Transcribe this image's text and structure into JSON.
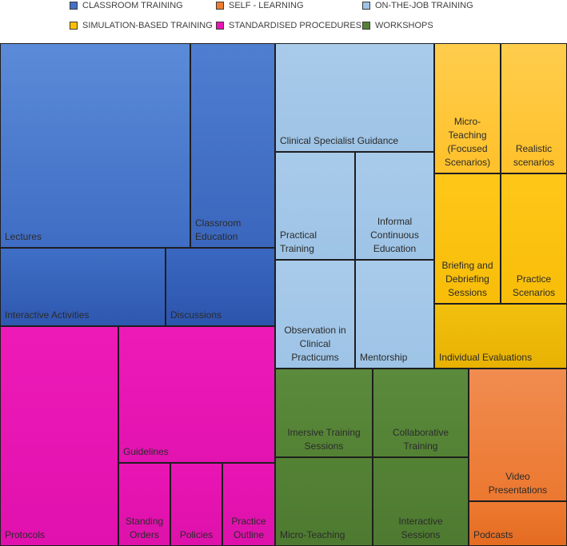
{
  "chart_data": {
    "type": "treemap",
    "title": "",
    "legend_position": "top",
    "categories": [
      {
        "name": "CLASSROOM TRAINING",
        "color": "#4472C4"
      },
      {
        "name": "SELF - LEARNING",
        "color": "#ED7D31"
      },
      {
        "name": "ON-THE-JOB TRAINING",
        "color": "#9DC3E6"
      },
      {
        "name": "SIMULATION-BASED TRAINING",
        "color": "#FFC000"
      },
      {
        "name": "STANDARDISED PROCEDURES",
        "color": "#E815B4"
      },
      {
        "name": "WORKSHOPS",
        "color": "#548235"
      }
    ],
    "nodes": [
      {
        "label": "Lectures",
        "group": "CLASSROOM TRAINING",
        "value": 55300
      },
      {
        "label": "Classroom Education",
        "group": "CLASSROOM TRAINING",
        "value": 27100
      },
      {
        "label": "Interactive Activities",
        "group": "CLASSROOM TRAINING",
        "value": 20100
      },
      {
        "label": "Discussions",
        "group": "CLASSROOM TRAINING",
        "value": 13400
      },
      {
        "label": "Protocols",
        "group": "STANDARDISED PROCEDURES",
        "value": 40600
      },
      {
        "label": "Guidelines",
        "group": "STANDARDISED PROCEDURES",
        "value": 34300
      },
      {
        "label": "Standing Orders",
        "group": "STANDARDISED PROCEDURES",
        "value": 6900
      },
      {
        "label": "Policies",
        "group": "STANDARDISED PROCEDURES",
        "value": 6900
      },
      {
        "label": "Practice Outline",
        "group": "STANDARDISED PROCEDURES",
        "value": 6900
      },
      {
        "label": "Clinical Specialist Guidance",
        "group": "ON-THE-JOB TRAINING",
        "value": 27000
      },
      {
        "label": "Practical Training",
        "group": "ON-THE-JOB TRAINING",
        "value": 13300
      },
      {
        "label": "Informal Continuous Education",
        "group": "ON-THE-JOB TRAINING",
        "value": 13100
      },
      {
        "label": "Observation in Clinical Practicums",
        "group": "ON-THE-JOB TRAINING",
        "value": 13300
      },
      {
        "label": "Mentorship",
        "group": "ON-THE-JOB TRAINING",
        "value": 13200
      },
      {
        "label": "Micro-Teaching (Focused Scenarios)",
        "group": "SIMULATION-BASED TRAINING",
        "value": 13300
      },
      {
        "label": "Realistic scenarios",
        "group": "SIMULATION-BASED TRAINING",
        "value": 13300
      },
      {
        "label": "Briefing and Debriefing Sessions",
        "group": "SIMULATION-BASED TRAINING",
        "value": 13300
      },
      {
        "label": "Practice Scenarios",
        "group": "SIMULATION-BASED TRAINING",
        "value": 13300
      },
      {
        "label": "Individual Evaluations",
        "group": "SIMULATION-BASED TRAINING",
        "value": 13300
      },
      {
        "label": "Imersive Training Sessions",
        "group": "WORKSHOPS",
        "value": 13100
      },
      {
        "label": "Collaborative Training",
        "group": "WORKSHOPS",
        "value": 13400
      },
      {
        "label": "Micro-Teaching",
        "group": "WORKSHOPS",
        "value": 13200
      },
      {
        "label": "Interactive Sessions",
        "group": "WORKSHOPS",
        "value": 13500
      },
      {
        "label": "Video Presentations",
        "group": "SELF - LEARNING",
        "value": 19200
      },
      {
        "label": "Podcasts",
        "group": "SELF - LEARNING",
        "value": 6200
      }
    ]
  }
}
